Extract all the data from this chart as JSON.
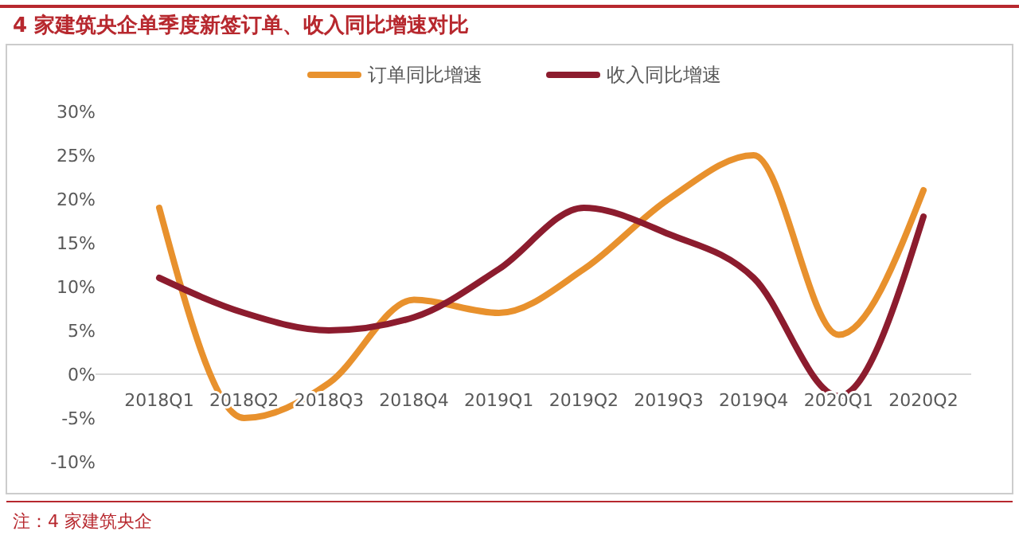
{
  "chart_data": {
    "type": "line",
    "title": "4 家建筑央企单季度新签订单、收入同比增速对比",
    "categories": [
      "2018Q1",
      "2018Q2",
      "2018Q3",
      "2018Q4",
      "2019Q1",
      "2019Q2",
      "2019Q3",
      "2019Q4",
      "2020Q1",
      "2020Q2"
    ],
    "series": [
      {
        "name": "订单同比增速",
        "color": "#e8912d",
        "values": [
          19,
          -5,
          -1,
          8.5,
          7,
          12,
          20,
          25,
          4.5,
          21
        ]
      },
      {
        "name": "收入同比增速",
        "color": "#8c1c2e",
        "values": [
          11,
          7,
          5,
          6.5,
          12,
          19,
          16,
          11,
          -2.5,
          18
        ]
      }
    ],
    "ylim": [
      -10,
      30
    ],
    "yticks": [
      {
        "value": -10,
        "label": "-10%"
      },
      {
        "value": -5,
        "label": "-5%"
      },
      {
        "value": 0,
        "label": "0%"
      },
      {
        "value": 5,
        "label": "5%"
      },
      {
        "value": 10,
        "label": "10%"
      },
      {
        "value": 15,
        "label": "15%"
      },
      {
        "value": 20,
        "label": "20%"
      },
      {
        "value": 25,
        "label": "25%"
      },
      {
        "value": 30,
        "label": "30%"
      }
    ],
    "legend": "top",
    "grid": false,
    "marker": "none",
    "line_style": "solid",
    "annotations": [
      "注：4 家建筑央企"
    ]
  }
}
